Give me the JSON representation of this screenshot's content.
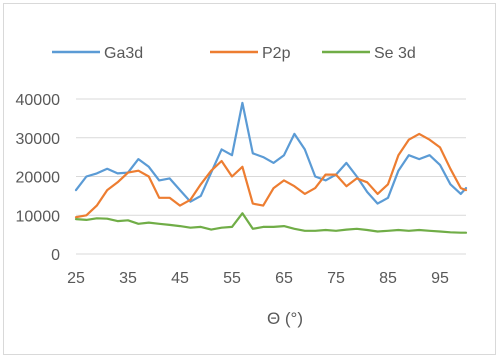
{
  "chart_data": {
    "type": "line",
    "title": "",
    "xlabel": "Θ (°)",
    "ylabel": "",
    "xlim": [
      25,
      100
    ],
    "ylim": [
      0,
      40000
    ],
    "grid": true,
    "legend_position": "top",
    "x_ticks": [
      25,
      35,
      45,
      55,
      65,
      75,
      85,
      95
    ],
    "y_ticks": [
      0,
      10000,
      20000,
      30000,
      40000
    ],
    "x_tick_labels": [
      "25",
      "35",
      "45",
      "55",
      "65",
      "75",
      "85",
      "95"
    ],
    "y_tick_labels": [
      "0",
      "10000",
      "20000",
      "30000",
      "40000"
    ],
    "x": [
      25,
      27,
      29,
      31,
      33,
      35,
      37,
      39,
      41,
      43,
      45,
      47,
      49,
      51,
      53,
      55,
      57,
      59,
      61,
      63,
      65,
      67,
      69,
      71,
      73,
      75,
      77,
      79,
      81,
      83,
      85,
      87,
      89,
      91,
      93,
      95,
      97,
      99,
      100
    ],
    "series": [
      {
        "name": "Ga3d",
        "color": "#5B9BD5",
        "values": [
          16500,
          20000,
          20800,
          22000,
          20800,
          21000,
          24500,
          22500,
          19000,
          19500,
          16500,
          13500,
          15000,
          21000,
          27000,
          25500,
          39000,
          26000,
          25000,
          23500,
          25500,
          31000,
          27000,
          20000,
          19000,
          20500,
          23500,
          20000,
          16000,
          13000,
          14500,
          21500,
          25500,
          24500,
          25500,
          23000,
          18000,
          15500,
          17000
        ]
      },
      {
        "name": "P2p",
        "color": "#ED7D31",
        "values": [
          9500,
          10000,
          12500,
          16500,
          18500,
          21000,
          21500,
          20000,
          14500,
          14500,
          12500,
          14000,
          18000,
          21500,
          24000,
          20000,
          22500,
          13000,
          12500,
          17000,
          19000,
          17500,
          15500,
          17000,
          20500,
          20500,
          17500,
          19500,
          18500,
          15500,
          18000,
          25500,
          29500,
          31000,
          29500,
          27500,
          22000,
          17000,
          16500
        ]
      },
      {
        "name": "Se 3d",
        "color": "#70AD47",
        "values": [
          9000,
          8800,
          9200,
          9100,
          8500,
          8700,
          7800,
          8100,
          7800,
          7500,
          7200,
          6800,
          7000,
          6300,
          6800,
          7000,
          10500,
          6500,
          7000,
          7000,
          7200,
          6500,
          6000,
          6000,
          6200,
          6000,
          6300,
          6500,
          6200,
          5800,
          6000,
          6200,
          6000,
          6200,
          6000,
          5800,
          5600,
          5500,
          5500
        ]
      }
    ]
  }
}
